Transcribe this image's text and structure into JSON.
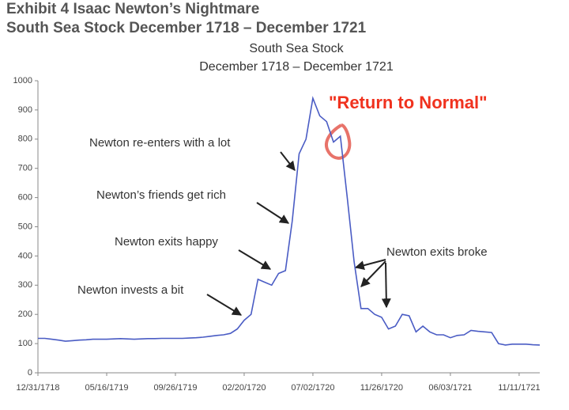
{
  "chart_data": {
    "type": "line",
    "header": [
      "Exhibit 4  Isaac Newton’s Nightmare",
      "South Sea Stock December 1718 – December 1721"
    ],
    "title": "South Sea Stock",
    "subtitle": "December 1718 – December 1721",
    "annotations": [
      "Newton re-enters with a lot",
      "Newton’s friends get rich",
      "Newton exits happy",
      "Newton invests a bit",
      "Newton exits broke",
      "\"Return to Normal\""
    ],
    "categories": [
      "12/31/1718",
      null,
      null,
      null,
      null,
      null,
      null,
      null,
      null,
      null,
      "05/16/1719",
      null,
      null,
      null,
      null,
      null,
      null,
      null,
      null,
      null,
      "09/26/1719",
      null,
      null,
      null,
      null,
      null,
      null,
      null,
      null,
      null,
      "02/20/1720",
      null,
      null,
      null,
      null,
      null,
      null,
      null,
      null,
      null,
      "07/02/1720",
      null,
      null,
      null,
      null,
      null,
      null,
      null,
      null,
      null,
      "11/26/1720",
      null,
      null,
      null,
      null,
      null,
      null,
      null,
      null,
      null,
      "06/03/1721",
      null,
      null,
      null,
      null,
      null,
      null,
      null,
      null,
      null,
      "11/11/1721",
      null,
      null,
      null
    ],
    "series": [
      {
        "name": "South Sea Stock",
        "color": "#4a5cc4",
        "values": [
          118,
          118,
          115,
          112,
          108,
          110,
          112,
          113,
          115,
          115,
          115,
          116,
          117,
          116,
          115,
          116,
          117,
          117,
          118,
          118,
          118,
          118,
          119,
          120,
          122,
          125,
          128,
          130,
          135,
          150,
          180,
          200,
          320,
          310,
          300,
          340,
          350,
          520,
          750,
          800,
          940,
          880,
          860,
          790,
          810,
          600,
          380,
          220,
          220,
          200,
          190,
          150,
          160,
          200,
          195,
          140,
          160,
          140,
          130,
          130,
          120,
          128,
          130,
          145,
          142,
          140,
          138,
          100,
          95,
          98,
          98,
          98,
          96,
          95
        ]
      }
    ],
    "ylim": [
      0,
      1000
    ],
    "yticks": [
      0,
      100,
      200,
      300,
      400,
      500,
      600,
      700,
      800,
      900,
      1000
    ],
    "grid": false
  }
}
